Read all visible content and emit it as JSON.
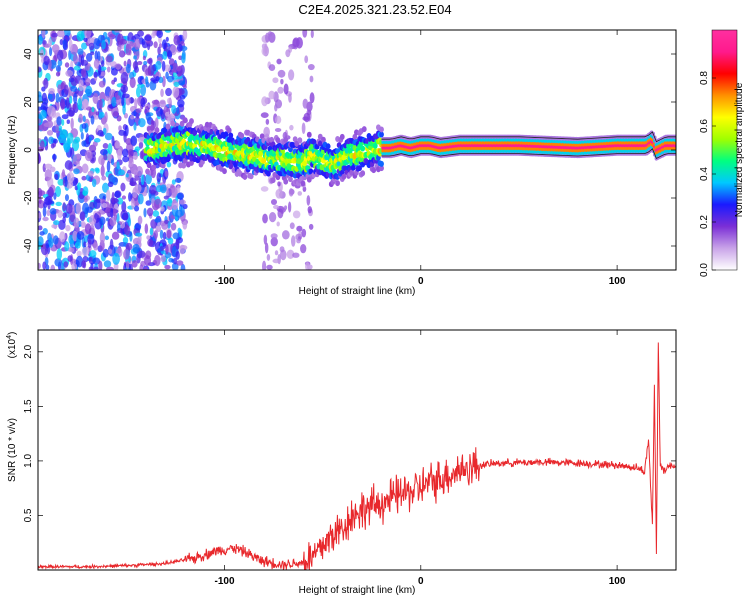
{
  "title": "C2E4.2025.321.23.52.E04",
  "colors": {
    "line": "#e8282c",
    "axis": "#000000",
    "background": "#ffffff"
  },
  "chart_data": [
    {
      "type": "heatmap",
      "xlabel": "Height of straight line (km)",
      "ylabel": "Frequency (Hz)",
      "xlim": [
        -195,
        130
      ],
      "ylim": [
        -50,
        50
      ],
      "x_ticks": [
        -100,
        0,
        100
      ],
      "x_tick_labels": [
        "-100",
        "0",
        "100"
      ],
      "y_ticks": [
        -40,
        -20,
        0,
        20,
        40
      ],
      "y_tick_labels": [
        "-40",
        "-20",
        "0",
        "20",
        "40"
      ],
      "colorbar": {
        "label": "Normalized spectral amplitude",
        "range": [
          0,
          1
        ],
        "ticks": [
          0.0,
          0.2,
          0.4,
          0.6,
          0.8
        ],
        "tick_labels": [
          "0.0",
          "0.2",
          "0.4",
          "0.6",
          "0.8"
        ],
        "colors": [
          "#ffffff",
          "#c9a3e8",
          "#7b2fd6",
          "#1a1aff",
          "#00c8ff",
          "#00ff80",
          "#a0ff00",
          "#ffff00",
          "#ff9000",
          "#ff0000",
          "#ff1a8c",
          "#ff2fa0"
        ]
      },
      "ridge": {
        "x": [
          -140,
          -130,
          -120,
          -110,
          -100,
          -90,
          -80,
          -70,
          -60,
          -55,
          -50,
          -45,
          -40,
          -35,
          -30,
          -25,
          -20,
          -15,
          -10,
          -5,
          0,
          5,
          10,
          20,
          30,
          50,
          80,
          100,
          115,
          118,
          120,
          125,
          130
        ],
        "y": [
          0,
          2,
          3,
          2,
          0,
          -2,
          -3,
          -4,
          -5,
          -2,
          -4,
          -6,
          -3,
          -2,
          -1,
          0,
          1,
          1,
          2,
          1,
          2,
          2,
          1,
          2,
          2,
          2,
          1,
          2,
          2,
          4,
          0,
          2,
          2
        ]
      },
      "noise_regions": [
        {
          "x_from": -195,
          "x_to": -120,
          "amplitude": 0.3
        },
        {
          "x_from": -80,
          "x_to": -55,
          "amplitude": 0.1
        }
      ]
    },
    {
      "type": "line",
      "xlabel": "Height of straight line (km)",
      "ylabel": "SNR (10 * v/v)",
      "y_multiplier": "(x10",
      "y_multiplier_exp": "4",
      "y_multiplier_close": ")",
      "xlim": [
        -195,
        130
      ],
      "ylim": [
        0.0,
        2.2
      ],
      "x_ticks": [
        -100,
        0,
        100
      ],
      "x_tick_labels": [
        "-100",
        "0",
        "100"
      ],
      "y_ticks": [
        0.5,
        1.0,
        1.5,
        2.0
      ],
      "y_tick_labels": [
        "0.5",
        "1.0",
        "1.5",
        "2.0"
      ],
      "series": [
        {
          "name": "SNR",
          "x": [
            -195,
            -170,
            -150,
            -130,
            -115,
            -105,
            -100,
            -95,
            -90,
            -85,
            -80,
            -70,
            -60,
            -55,
            -50,
            -45,
            -40,
            -35,
            -30,
            -25,
            -20,
            -15,
            -10,
            -5,
            0,
            5,
            10,
            20,
            30,
            40,
            60,
            80,
            100,
            110,
            114,
            116,
            118,
            119,
            120,
            121,
            122,
            124,
            126,
            130
          ],
          "values": [
            0.03,
            0.03,
            0.04,
            0.06,
            0.11,
            0.17,
            0.19,
            0.2,
            0.17,
            0.12,
            0.08,
            0.05,
            0.07,
            0.12,
            0.22,
            0.32,
            0.38,
            0.5,
            0.55,
            0.58,
            0.62,
            0.65,
            0.7,
            0.72,
            0.76,
            0.8,
            0.84,
            0.92,
            0.96,
            0.98,
            0.99,
            0.98,
            0.96,
            0.94,
            0.9,
            1.2,
            0.4,
            1.7,
            0.15,
            2.1,
            0.95,
            0.92,
            0.95,
            0.96
          ]
        }
      ]
    }
  ]
}
